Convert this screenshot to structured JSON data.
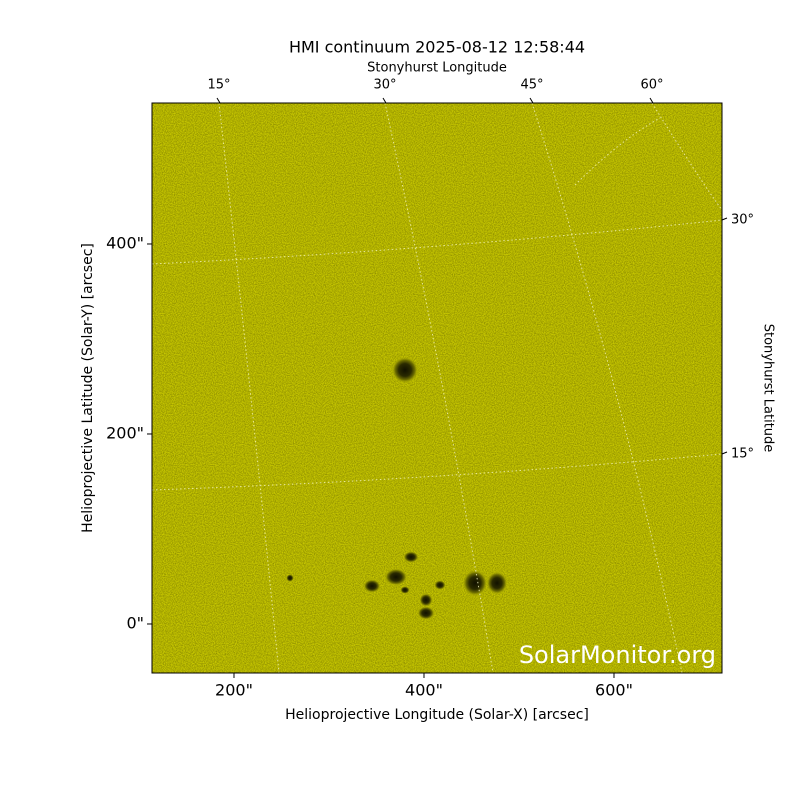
{
  "chart_data": {
    "type": "image",
    "title": "HMI continuum 2025-08-12 12:58:44",
    "xlabel": "Helioprojective Longitude (Solar-X) [arcsec]",
    "ylabel": "Helioprojective Latitude (Solar-Y) [arcsec]",
    "xlim": [
      113.7,
      713.7
    ],
    "ylim": [
      -51.6,
      548.4
    ],
    "xticks": [
      {
        "value": 200,
        "label": "200\""
      },
      {
        "value": 400,
        "label": "400\""
      },
      {
        "value": 600,
        "label": "600\""
      }
    ],
    "yticks": [
      {
        "value": 0,
        "label": "0\""
      },
      {
        "value": 200,
        "label": "200\""
      },
      {
        "value": 400,
        "label": "400\""
      }
    ],
    "top_axis": {
      "label": "Stonyhurst Longitude",
      "ticks": [
        "15°",
        "30°",
        "45°",
        "60°"
      ]
    },
    "right_axis": {
      "label": "Stonyhurst Latitude",
      "ticks": [
        "30°",
        "15°"
      ]
    },
    "watermark": "SolarMonitor.org",
    "color": "#c9c900"
  }
}
